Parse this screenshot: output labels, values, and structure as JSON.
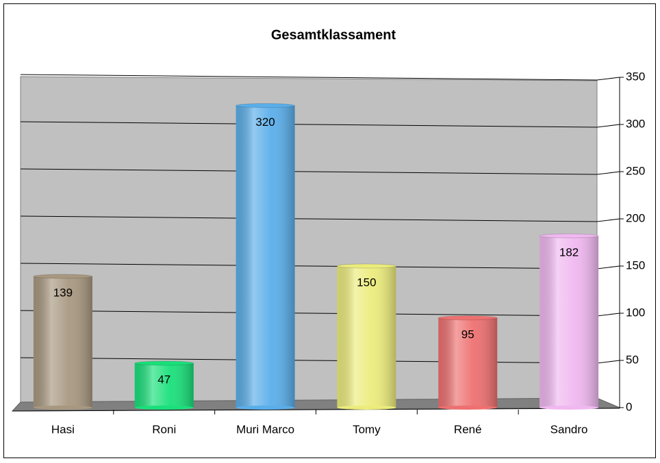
{
  "chart_data": {
    "type": "bar",
    "title": "Gesamtklassament",
    "categories": [
      "Hasi",
      "Roni",
      "Muri Marco",
      "Tomy",
      "René",
      "Sandro"
    ],
    "values": [
      139,
      47,
      320,
      150,
      95,
      182
    ],
    "colors": [
      "#a89880",
      "#19e07a",
      "#5aaeea",
      "#ecec7c",
      "#ee7070",
      "#f0b8f0"
    ],
    "ylim": [
      0,
      350
    ],
    "yticks": [
      0,
      50,
      100,
      150,
      200,
      250,
      300,
      350
    ],
    "grid": true
  }
}
